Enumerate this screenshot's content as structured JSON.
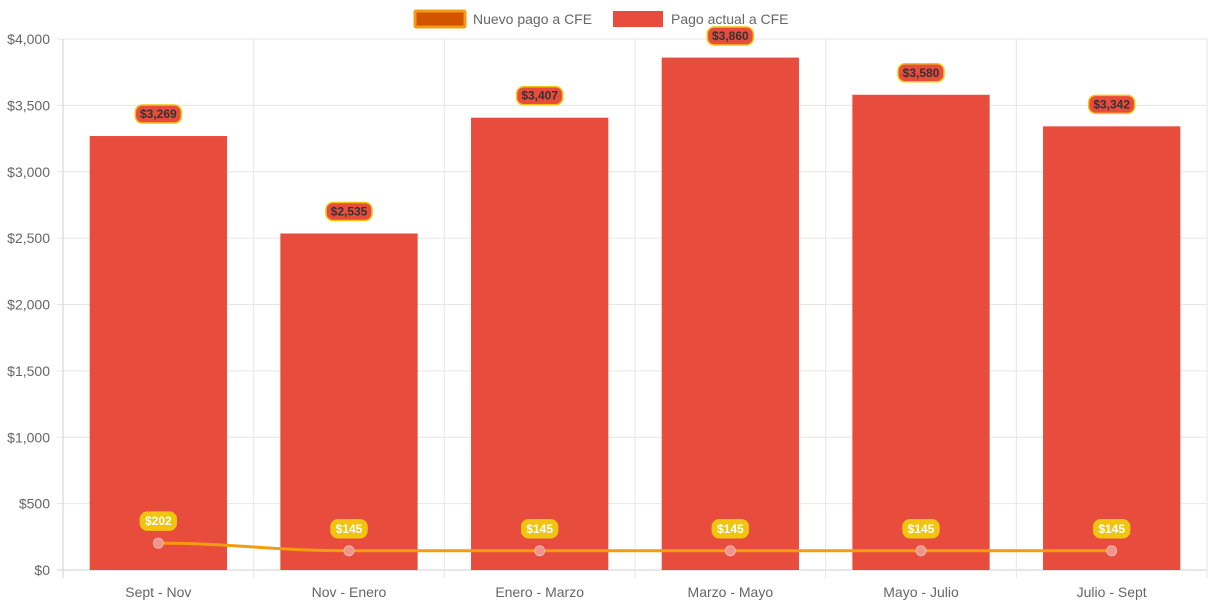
{
  "chart_data": {
    "type": "bar",
    "title": "",
    "xlabel": "",
    "ylabel": "",
    "categories": [
      "Sept - Nov",
      "Nov - Enero",
      "Enero - Marzo",
      "Marzo - Mayo",
      "Mayo - Julio",
      "Julio - Sept"
    ],
    "ylim": [
      0,
      4000
    ],
    "yticks": [
      0,
      500,
      1000,
      1500,
      2000,
      2500,
      3000,
      3500,
      4000
    ],
    "ytick_labels": [
      "$0",
      "$500",
      "$1,000",
      "$1,500",
      "$2,000",
      "$2,500",
      "$3,000",
      "$3,500",
      "$4,000"
    ],
    "grid": true,
    "legend_position": "top-center",
    "series": [
      {
        "name": "Nuevo pago a CFE",
        "type": "line",
        "color": "#f39c12",
        "point_color": "#f1948a",
        "legend_color": "#d35400",
        "values": [
          202,
          145,
          145,
          145,
          145,
          145
        ],
        "data_labels": [
          "$202",
          "$145",
          "$145",
          "$145",
          "$145",
          "$145"
        ],
        "label_bg": "#f1c40f",
        "label_text_color": "#ffffff"
      },
      {
        "name": "Pago actual a CFE",
        "type": "bar",
        "color": "#e74c3c",
        "values": [
          3269,
          2535,
          3407,
          3860,
          3580,
          3342
        ],
        "data_labels": [
          "$3,269",
          "$2,535",
          "$3,407",
          "$3,860",
          "$3,580",
          "$3,342"
        ],
        "label_bg": "#e74c3c",
        "label_border": "#f1c40f",
        "label_text_color": "#333333"
      }
    ]
  }
}
